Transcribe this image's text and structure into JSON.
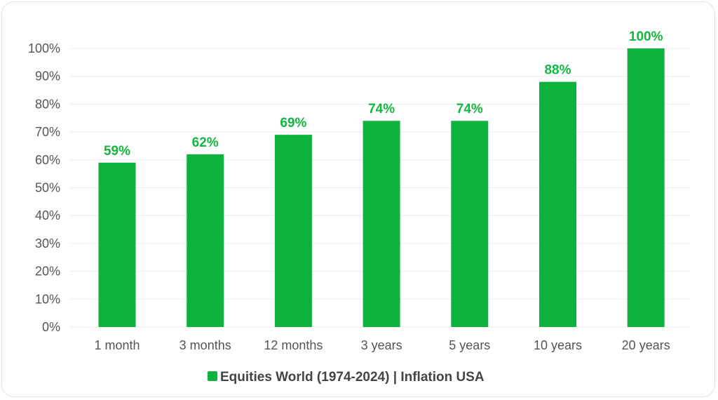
{
  "chart_data": {
    "type": "bar",
    "categories": [
      "1 month",
      "3 months",
      "12 months",
      "3 years",
      "5 years",
      "10 years",
      "20 years"
    ],
    "values": [
      59,
      62,
      69,
      74,
      74,
      88,
      100
    ],
    "data_labels": [
      "59%",
      "62%",
      "69%",
      "74%",
      "74%",
      "88%",
      "100%"
    ],
    "ylim": [
      0,
      100
    ],
    "yticks": [
      "0%",
      "10%",
      "20%",
      "30%",
      "40%",
      "50%",
      "60%",
      "70%",
      "80%",
      "90%",
      "100%"
    ],
    "series": [
      {
        "name": "Equities World (1974-2024) | Inflation USA",
        "values": [
          59,
          62,
          69,
          74,
          74,
          88,
          100
        ]
      }
    ],
    "grid": true,
    "legend": "bottom-center",
    "colors": {
      "bar": "#0db33d",
      "label": "#12b740",
      "grid": "#ececec"
    }
  }
}
